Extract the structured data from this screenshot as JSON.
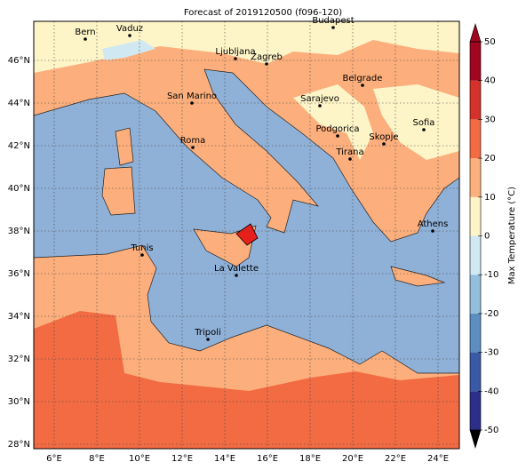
{
  "map": {
    "title": "Forecast of 2019120500 (f096-120)",
    "lon_ticks": [
      "6°E",
      "8°E",
      "10°E",
      "12°E",
      "14°E",
      "16°E",
      "18°E",
      "20°E",
      "22°E",
      "24°E"
    ],
    "lat_ticks": [
      "28°N",
      "30°N",
      "32°N",
      "34°N",
      "36°N",
      "38°N",
      "40°N",
      "42°N",
      "44°N",
      "46°N"
    ],
    "cities": [
      "Bern",
      "Vaduz",
      "Budapest",
      "Ljubljana",
      "Zagreb",
      "Belgrade",
      "San Marino",
      "Sarajevo",
      "Sofia",
      "Podgorica",
      "Skopje",
      "Roma",
      "Tirana",
      "Athens",
      "Tunis",
      "La Valette",
      "Tripoli"
    ],
    "colorbar": {
      "label": "Max Temperature (°C)",
      "ticks": [
        -50,
        -40,
        -30,
        -20,
        -10,
        0,
        10,
        20,
        30,
        40,
        50
      ],
      "colors": [
        "#2c2f8a",
        "#3a5aa6",
        "#5d8ec3",
        "#93bedc",
        "#cfe8f2",
        "#fdf4c7",
        "#fcb07d",
        "#f26b43",
        "#d4322a",
        "#a0061f"
      ]
    }
  }
}
